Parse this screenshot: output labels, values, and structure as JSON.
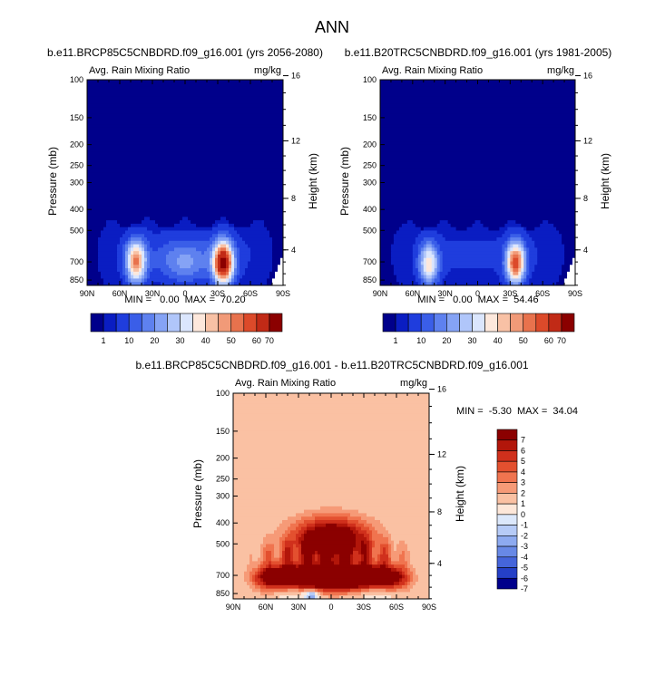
{
  "figure_title": "ANN",
  "chart_data": [
    {
      "type": "heatmap",
      "panel": "top-left",
      "title": "b.e11.BRCP85C5CNBDRD.f09_g16.001 (yrs 2056-2080)",
      "variable": "Avg. Rain Mixing Ratio",
      "units": "mg/kg",
      "ylabel": "Pressure (mb)",
      "ylabel_right": "Height (km)",
      "x_ticks": [
        "90N",
        "60N",
        "30N",
        "0",
        "30S",
        "60S",
        "90S"
      ],
      "y_ticks": [
        "100",
        "150",
        "200",
        "250",
        "300",
        "400",
        "500",
        "700",
        "850"
      ],
      "y_ticks_right": [
        "16",
        "12",
        "8",
        "4"
      ],
      "stats": "MIN =   0.00  MAX =  70.20",
      "min": 0.0,
      "max": 70.2,
      "colorbar_labels": [
        "1",
        "10",
        "20",
        "30",
        "40",
        "50",
        "60",
        "70"
      ],
      "features": [
        {
          "lat": -35,
          "p": 710,
          "value": 70
        },
        {
          "lat": 45,
          "p": 700,
          "value": 45
        },
        {
          "lat": 0,
          "p": 700,
          "value": 15
        }
      ]
    },
    {
      "type": "heatmap",
      "panel": "top-right",
      "title": "b.e11.B20TRC5CNBDRD.f09_g16.001 (yrs 1981-2005)",
      "variable": "Avg. Rain Mixing Ratio",
      "units": "mg/kg",
      "ylabel": "Pressure (mb)",
      "ylabel_right": "Height (km)",
      "x_ticks": [
        "90N",
        "60N",
        "30N",
        "0",
        "30S",
        "60S",
        "90S"
      ],
      "y_ticks": [
        "100",
        "150",
        "200",
        "250",
        "300",
        "400",
        "500",
        "700",
        "850"
      ],
      "y_ticks_right": [
        "16",
        "12",
        "8",
        "4"
      ],
      "stats": "MIN =   0.00  MAX =  54.46",
      "min": 0.0,
      "max": 54.46,
      "colorbar_labels": [
        "1",
        "10",
        "20",
        "30",
        "40",
        "50",
        "60",
        "70"
      ],
      "features": [
        {
          "lat": -35,
          "p": 710,
          "value": 54
        },
        {
          "lat": 45,
          "p": 720,
          "value": 35
        }
      ]
    },
    {
      "type": "heatmap",
      "panel": "bottom",
      "title": "b.e11.BRCP85C5CNBDRD.f09_g16.001 - b.e11.B20TRC5CNBDRD.f09_g16.001",
      "variable": "Avg. Rain Mixing Ratio",
      "units": "mg/kg",
      "ylabel": "Pressure (mb)",
      "ylabel_right": "Height (km)",
      "x_ticks": [
        "90N",
        "60N",
        "30N",
        "0",
        "30S",
        "60S",
        "90S"
      ],
      "y_ticks": [
        "100",
        "150",
        "200",
        "250",
        "300",
        "400",
        "500",
        "700",
        "850"
      ],
      "y_ticks_right": [
        "16",
        "12",
        "8",
        "4"
      ],
      "stats": "MIN =  -5.30  MAX =  34.04",
      "min": -5.3,
      "max": 34.04,
      "colorbar_labels": [
        "7",
        "6",
        "5",
        "4",
        "3",
        "2",
        "1",
        "0",
        "-1",
        "-2",
        "-3",
        "-4",
        "-5",
        "-6",
        "-7"
      ]
    }
  ],
  "colors": {
    "abs_scale": [
      "#00008b",
      "#0a1dc2",
      "#1f3ddd",
      "#3a5ee8",
      "#5e81ef",
      "#85a3f5",
      "#b0c6fa",
      "#dbe6fd",
      "#fde8dc",
      "#f8c1a5",
      "#f19a78",
      "#e8724d",
      "#dc4a2a",
      "#c12a16",
      "#8b0000"
    ],
    "diff_scale": [
      "#8b0000",
      "#b2160a",
      "#d0301c",
      "#e3502f",
      "#f0744f",
      "#f69a77",
      "#fac1a3",
      "#fde7d9",
      "#dce8fb",
      "#b6cbf7",
      "#8daaf0",
      "#6889e6",
      "#4565db",
      "#2540c7",
      "#00008b"
    ]
  }
}
